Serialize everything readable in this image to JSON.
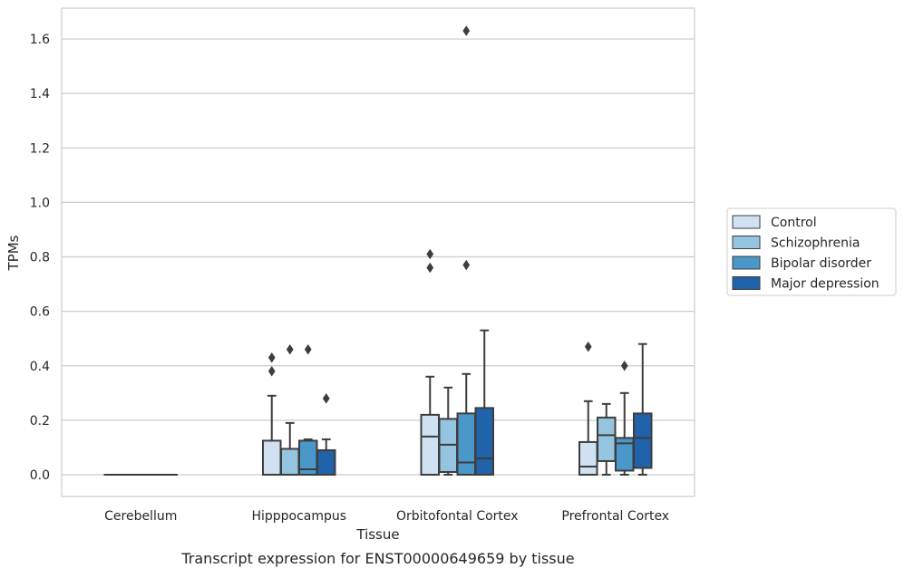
{
  "chart_data": {
    "type": "box",
    "title": "",
    "caption": "Transcript expression for ENST00000649659 by tissue",
    "xlabel": "Tissue",
    "ylabel": "TPMs",
    "ylim": [
      -0.08,
      1.72
    ],
    "yticks": [
      0.0,
      0.2,
      0.4,
      0.6,
      0.8,
      1.0,
      1.2,
      1.4,
      1.6
    ],
    "ytick_labels": [
      "0.0",
      "0.2",
      "0.4",
      "0.6",
      "0.8",
      "1.0",
      "1.2",
      "1.4",
      "1.6"
    ],
    "grid": "horizontal",
    "legend_position": "right-outside",
    "categories": [
      "Cerebellum",
      "Hipppocampus",
      "Orbitofontal Cortex",
      "Prefrontal Cortex"
    ],
    "series": [
      {
        "name": "Control",
        "color": "#d0e1f2",
        "boxes": [
          {
            "q1": 0.0,
            "median": 0.0,
            "q3": 0.0,
            "whisker_low": 0.0,
            "whisker_high": 0.0,
            "outliers": []
          },
          {
            "q1": 0.0,
            "median": 0.0,
            "q3": 0.125,
            "whisker_low": 0.0,
            "whisker_high": 0.29,
            "outliers": [
              0.38,
              0.43
            ]
          },
          {
            "q1": 0.0,
            "median": 0.14,
            "q3": 0.22,
            "whisker_low": 0.0,
            "whisker_high": 0.36,
            "outliers": [
              0.76,
              0.81
            ]
          },
          {
            "q1": 0.0,
            "median": 0.03,
            "q3": 0.12,
            "whisker_low": 0.0,
            "whisker_high": 0.27,
            "outliers": [
              0.47
            ]
          }
        ]
      },
      {
        "name": "Schizophrenia",
        "color": "#94c4df",
        "boxes": [
          {
            "q1": 0.0,
            "median": 0.0,
            "q3": 0.0,
            "whisker_low": 0.0,
            "whisker_high": 0.0,
            "outliers": []
          },
          {
            "q1": 0.0,
            "median": 0.0,
            "q3": 0.095,
            "whisker_low": 0.0,
            "whisker_high": 0.19,
            "outliers": [
              0.46
            ]
          },
          {
            "q1": 0.01,
            "median": 0.11,
            "q3": 0.205,
            "whisker_low": 0.0,
            "whisker_high": 0.32,
            "outliers": []
          },
          {
            "q1": 0.05,
            "median": 0.145,
            "q3": 0.21,
            "whisker_low": 0.0,
            "whisker_high": 0.26,
            "outliers": []
          }
        ]
      },
      {
        "name": "Bipolar disorder",
        "color": "#4a98c9",
        "boxes": [
          {
            "q1": 0.0,
            "median": 0.0,
            "q3": 0.0,
            "whisker_low": 0.0,
            "whisker_high": 0.0,
            "outliers": []
          },
          {
            "q1": 0.0,
            "median": 0.02,
            "q3": 0.125,
            "whisker_low": 0.0,
            "whisker_high": 0.13,
            "outliers": [
              0.46
            ]
          },
          {
            "q1": 0.0,
            "median": 0.045,
            "q3": 0.225,
            "whisker_low": 0.0,
            "whisker_high": 0.37,
            "outliers": [
              0.77,
              1.63
            ]
          },
          {
            "q1": 0.015,
            "median": 0.115,
            "q3": 0.135,
            "whisker_low": 0.0,
            "whisker_high": 0.3,
            "outliers": [
              0.4
            ]
          }
        ]
      },
      {
        "name": "Major depression",
        "color": "#2163aa",
        "boxes": [
          {
            "q1": 0.0,
            "median": 0.0,
            "q3": 0.0,
            "whisker_low": 0.0,
            "whisker_high": 0.0,
            "outliers": []
          },
          {
            "q1": 0.0,
            "median": 0.0,
            "q3": 0.09,
            "whisker_low": 0.0,
            "whisker_high": 0.13,
            "outliers": [
              0.28
            ]
          },
          {
            "q1": 0.0,
            "median": 0.06,
            "q3": 0.245,
            "whisker_low": 0.0,
            "whisker_high": 0.53,
            "outliers": []
          },
          {
            "q1": 0.025,
            "median": 0.135,
            "q3": 0.225,
            "whisker_low": 0.0,
            "whisker_high": 0.48,
            "outliers": []
          }
        ]
      }
    ]
  }
}
